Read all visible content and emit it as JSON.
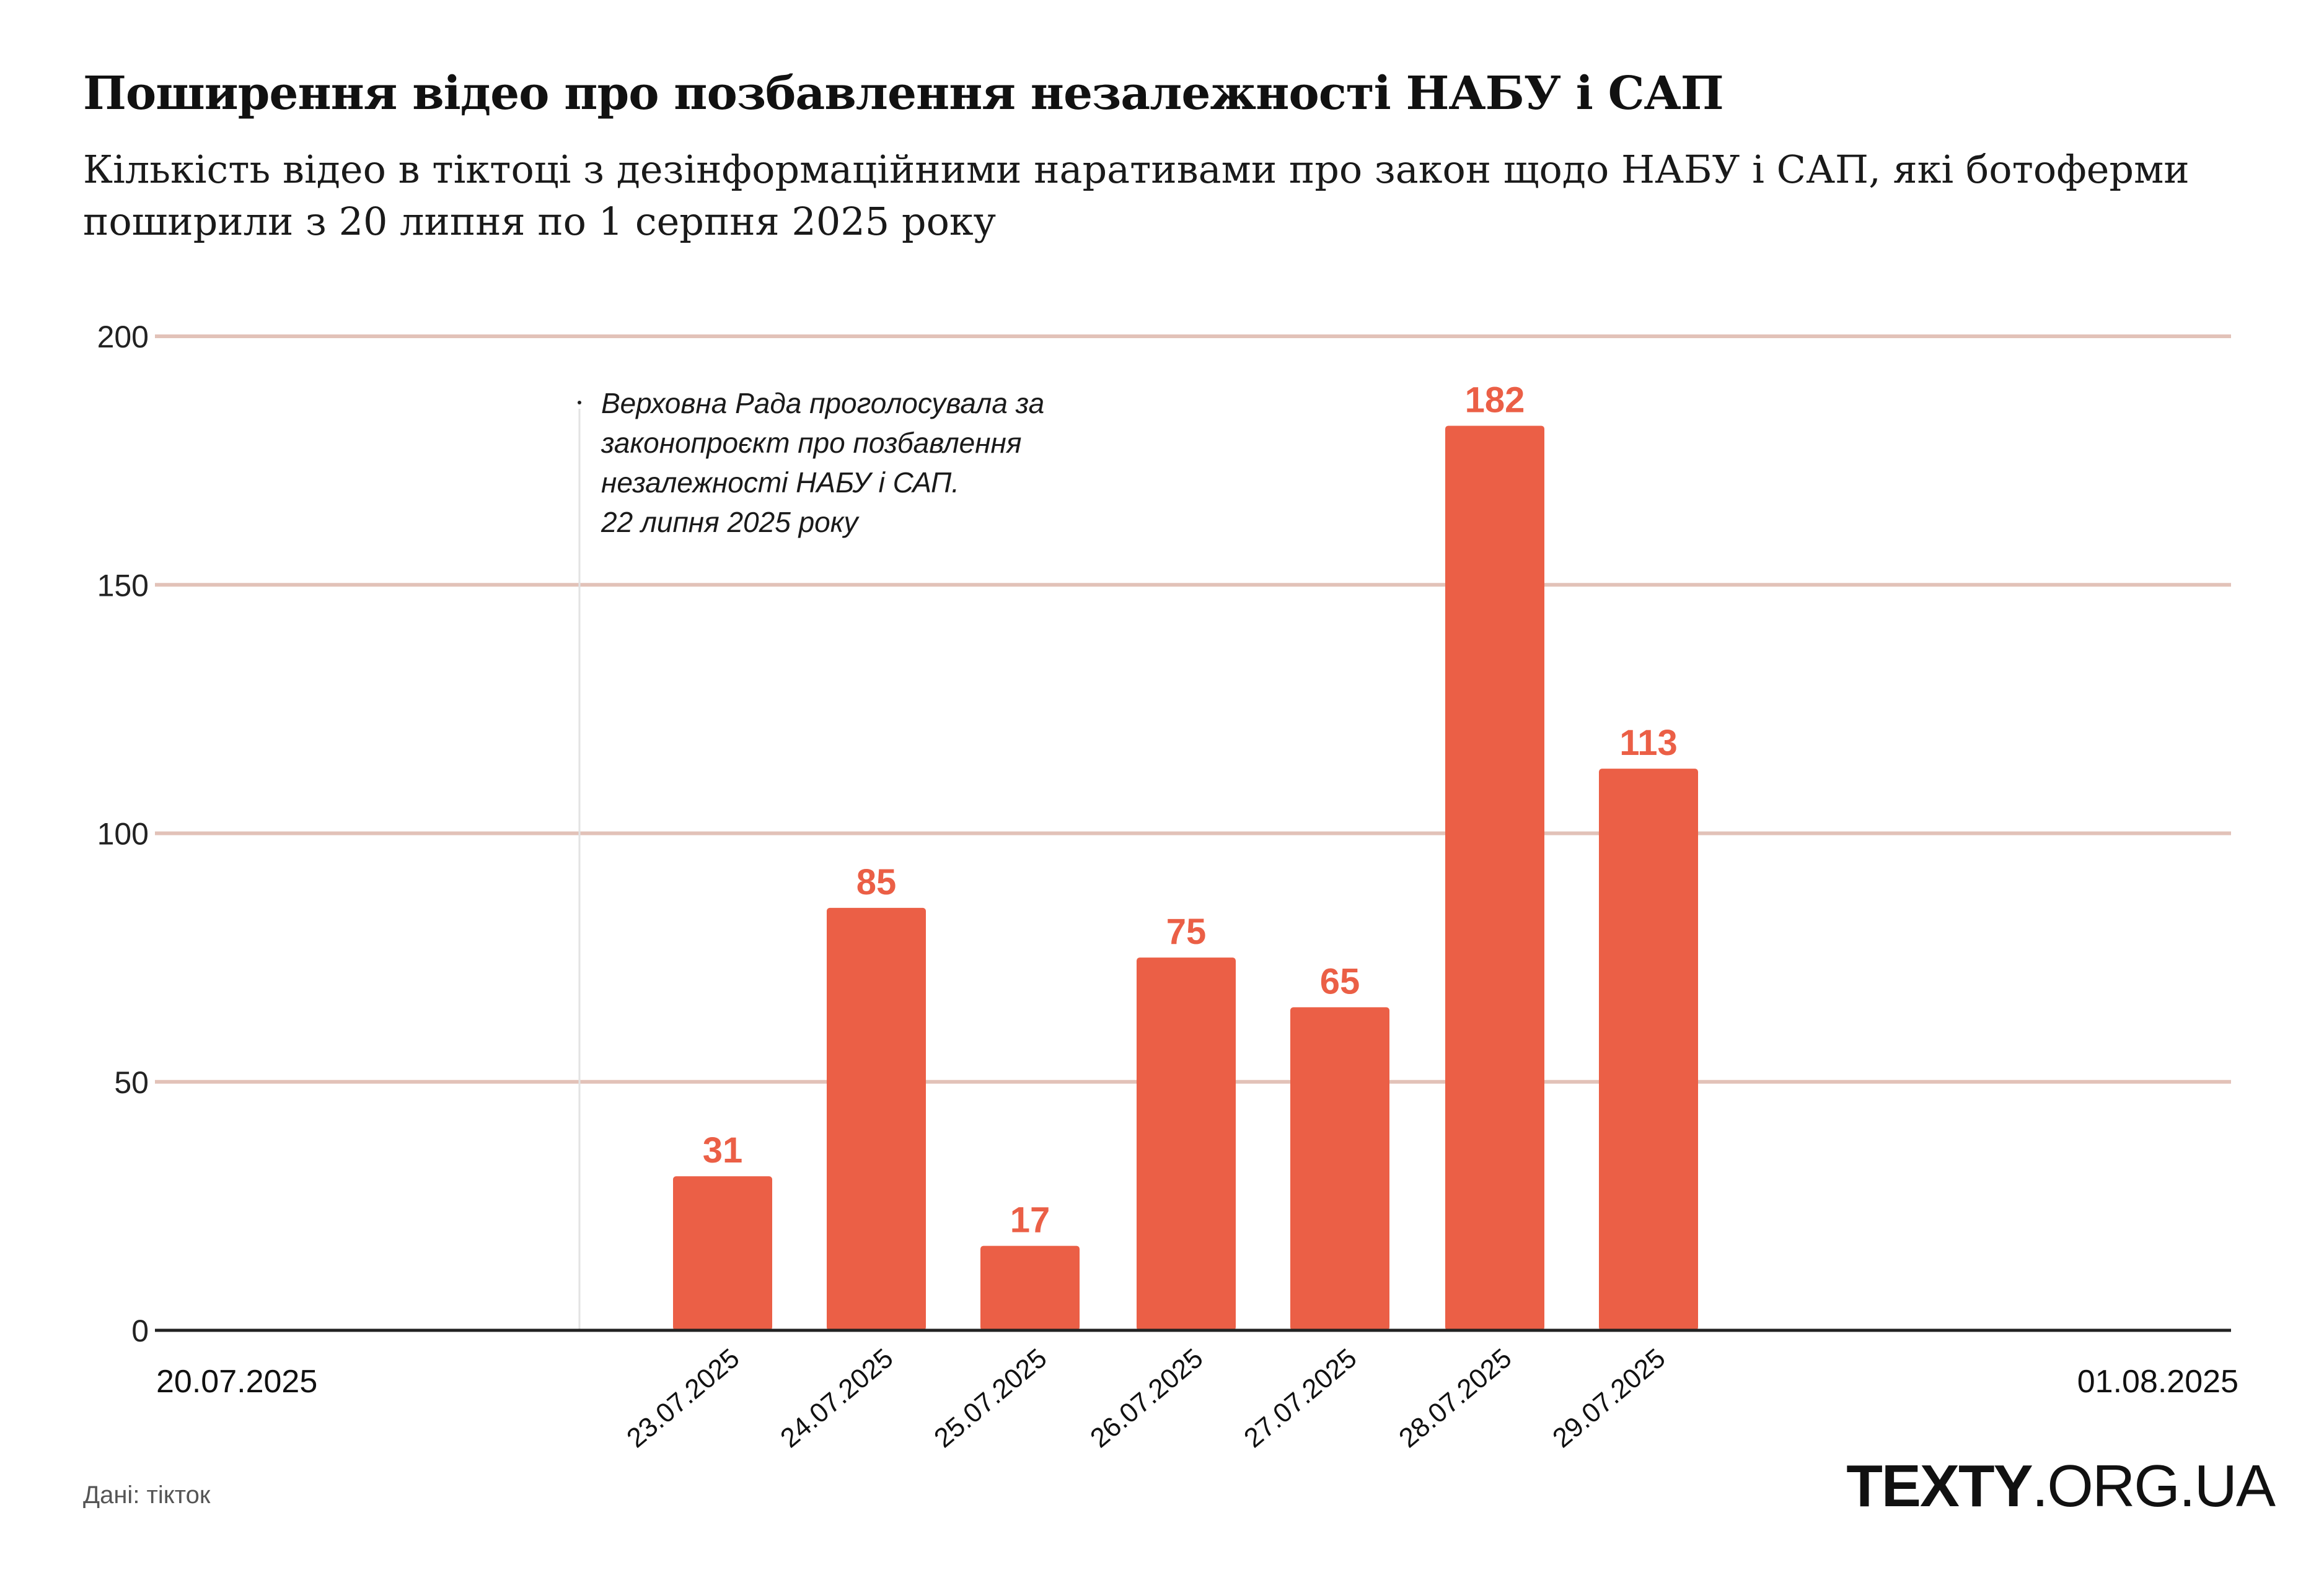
{
  "header": {
    "title": "Поширення відео про позбавлення незалежності НАБУ і САП",
    "subtitle": "Кількість відео в тіктоці з дезінформаційними наративами про закон щодо НАБУ і САП, які ботоферми поширили з 20 липня по 1 серпня 2025 року"
  },
  "chart_data": {
    "type": "bar",
    "title": "Поширення відео про позбавлення незалежності НАБУ і САП",
    "xlabel": "",
    "ylabel": "",
    "ylim": [
      0,
      200
    ],
    "yticks": [
      "0",
      "50",
      "100",
      "150",
      "200"
    ],
    "x_start_label": "20.07.2025",
    "x_end_label": "01.08.2025",
    "categories": [
      "23.07.2025",
      "24.07.2025",
      "25.07.2025",
      "26.07.2025",
      "27.07.2025",
      "28.07.2025",
      "29.07.2025"
    ],
    "values": [
      31,
      85,
      17,
      75,
      65,
      182,
      113
    ],
    "value_labels": [
      "31",
      "85",
      "17",
      "75",
      "65",
      "182",
      "113"
    ],
    "annotation": {
      "lines": [
        "Верховна Рада проголосувала за",
        "законопроєкт про позбавлення",
        "незалежності  НАБУ і САП.",
        "22 липня 2025 року"
      ]
    },
    "colors": {
      "bar": "#eb5f46",
      "grid": "#e2c2b8",
      "axis": "#222222",
      "label": "#eb5f46"
    }
  },
  "footer": {
    "source": "Дані: тікток",
    "logo_bold": "TEXTY",
    "logo_rest": ".ORG.UA"
  }
}
